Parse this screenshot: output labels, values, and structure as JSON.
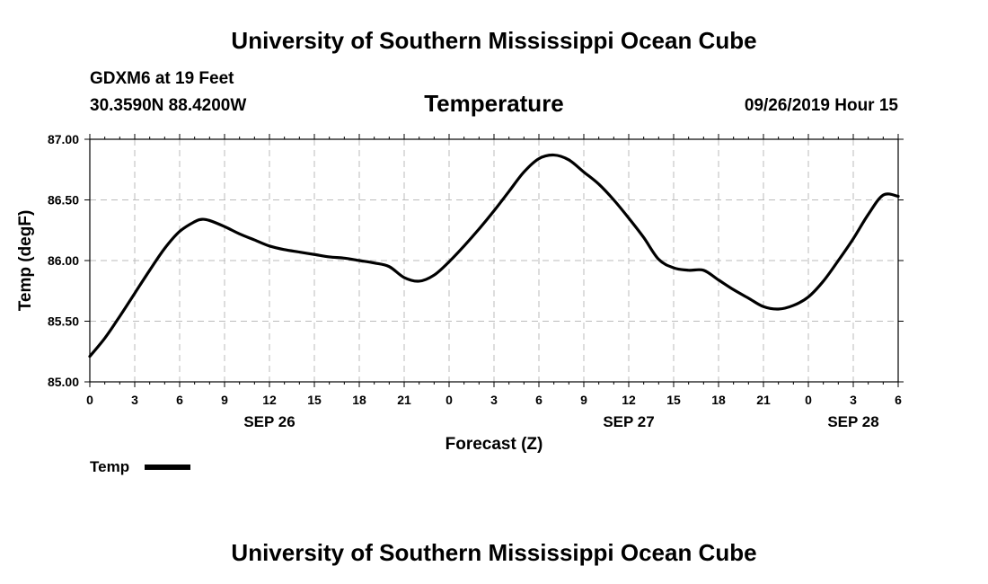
{
  "header": {
    "title": "University of Southern Mississippi Ocean Cube",
    "station": "GDXM6 at 19 Feet",
    "coords": "30.3590N 88.4200W",
    "datetime": "09/26/2019 Hour 15"
  },
  "footer": {
    "title": "University of Southern Mississippi Ocean Cube"
  },
  "chart_data": {
    "type": "line",
    "title": "Temperature",
    "xlabel": "Forecast (Z)",
    "ylabel": "Temp (degF)",
    "ylim": [
      85.0,
      87.0
    ],
    "xlim": [
      0,
      54
    ],
    "y_ticks": [
      "85.00",
      "85.50",
      "86.00",
      "86.50",
      "87.00"
    ],
    "y_tick_values": [
      85.0,
      85.5,
      86.0,
      86.5,
      87.0
    ],
    "x_tick_labels": [
      "0",
      "3",
      "6",
      "9",
      "12",
      "15",
      "18",
      "21",
      "0",
      "3",
      "6",
      "9",
      "12",
      "15",
      "18",
      "21",
      "0",
      "3",
      "6"
    ],
    "date_labels": [
      {
        "label": "SEP 26",
        "x": 12
      },
      {
        "label": "SEP 27",
        "x": 36
      },
      {
        "label": "SEP 28",
        "x": 51
      }
    ],
    "grid": true,
    "legend": [
      {
        "name": "Temp",
        "color": "#000000"
      }
    ],
    "series": [
      {
        "name": "Temp",
        "x": [
          0,
          1,
          2,
          3,
          4,
          5,
          6,
          7,
          7.5,
          8,
          9,
          10,
          11,
          12,
          13,
          14,
          15,
          16,
          17,
          18,
          19,
          20,
          21,
          22,
          23,
          24,
          25,
          26,
          27,
          28,
          29,
          30,
          31,
          32,
          33,
          34,
          35,
          36,
          37,
          38,
          39,
          40,
          41,
          42,
          43,
          44,
          45,
          46,
          47,
          48,
          49,
          50,
          51,
          52,
          53,
          54
        ],
        "values": [
          85.21,
          85.36,
          85.54,
          85.73,
          85.92,
          86.1,
          86.24,
          86.32,
          86.34,
          86.33,
          86.28,
          86.22,
          86.17,
          86.12,
          86.09,
          86.07,
          86.05,
          86.03,
          86.02,
          86.0,
          85.98,
          85.95,
          85.86,
          85.83,
          85.88,
          85.99,
          86.12,
          86.26,
          86.41,
          86.57,
          86.73,
          86.84,
          86.87,
          86.83,
          86.73,
          86.63,
          86.5,
          86.35,
          86.19,
          86.01,
          85.94,
          85.92,
          85.92,
          85.84,
          85.76,
          85.69,
          85.62,
          85.6,
          85.63,
          85.7,
          85.83,
          86.0,
          86.18,
          86.38,
          86.54,
          86.53
        ]
      }
    ]
  }
}
